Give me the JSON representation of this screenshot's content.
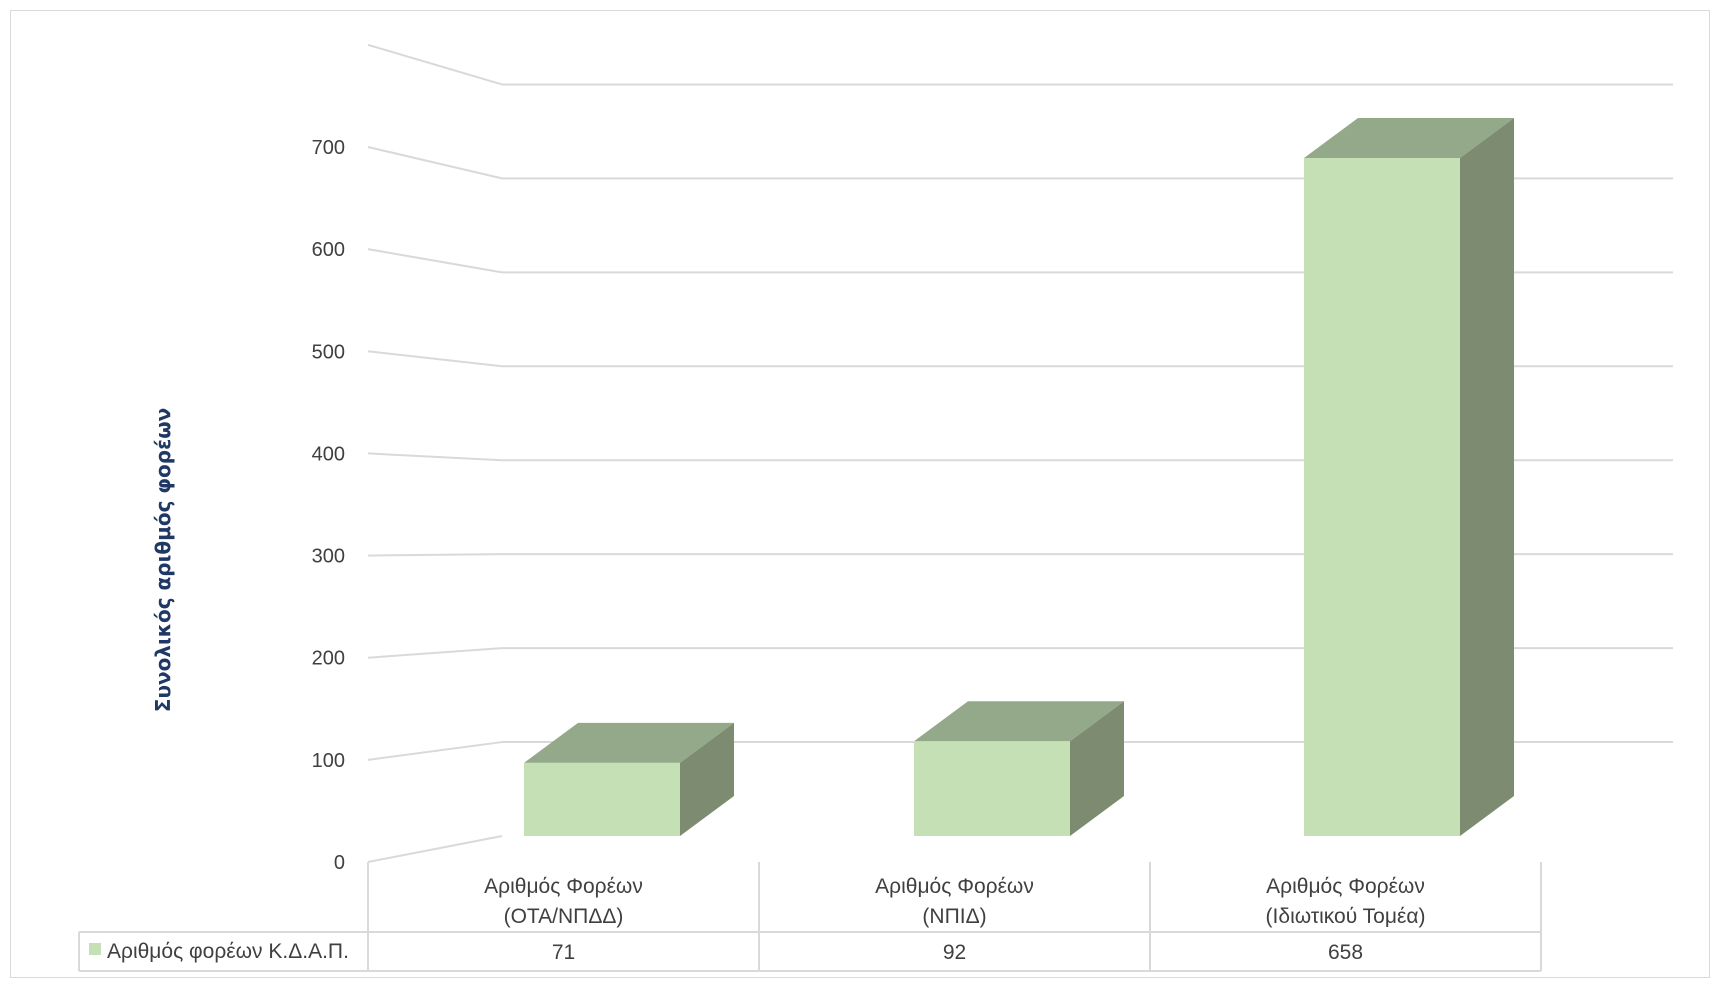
{
  "chart_data": {
    "type": "bar",
    "style": "3d-column",
    "categories": [
      [
        "Αριθμός Φορέων",
        "(ΟΤΑ/ΝΠΔΔ)"
      ],
      [
        "Αριθμός Φορέων",
        "(ΝΠΙΔ)"
      ],
      [
        "Αριθμός Φορέων",
        "(Ιδιωτικού Τομέα)"
      ]
    ],
    "series": [
      {
        "name": "Αριθμός φορέων Κ.Δ.Α.Π.",
        "values": [
          71,
          92,
          658
        ],
        "labels": [
          "71",
          "92",
          "658"
        ]
      }
    ],
    "ylabel": "Συνολικός αριθμός φορέων",
    "xlabel": "",
    "title": "",
    "ylim": [
      0,
      700
    ],
    "yticks": [
      0,
      100,
      200,
      300,
      400,
      500,
      600,
      700
    ],
    "grid": true,
    "data_table": true,
    "colors": {
      "front": "#c5e0b4",
      "top": "#93a98a",
      "side": "#7d8c70",
      "grid": "#d9d9d9",
      "ylabel": "#1f3864"
    }
  }
}
